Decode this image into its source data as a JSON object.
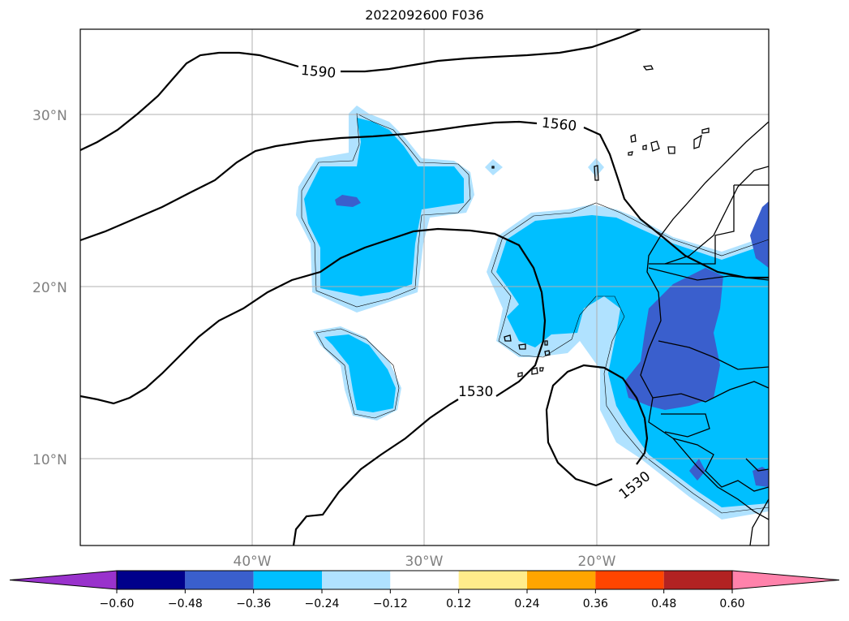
{
  "title": "2022092600 F036",
  "map": {
    "lat_labels": [
      "30°N",
      "20°N",
      "10°N"
    ],
    "lon_labels": [
      "40°W",
      "30°W",
      "20°W"
    ],
    "contour_labels": [
      "1590",
      "1560",
      "1530",
      "1530"
    ]
  },
  "colorbar": {
    "ticks": [
      "−0.60",
      "−0.48",
      "−0.36",
      "−0.24",
      "−0.12",
      "0.12",
      "0.24",
      "0.36",
      "0.48",
      "0.60"
    ],
    "colors": [
      "#9932cc",
      "#00008b",
      "#3a5fcd",
      "#00bfff",
      "#b0e2ff",
      "#ffffff",
      "#ffec8b",
      "#ffa500",
      "#ff4500",
      "#b22222",
      "#ff82ab"
    ]
  }
}
